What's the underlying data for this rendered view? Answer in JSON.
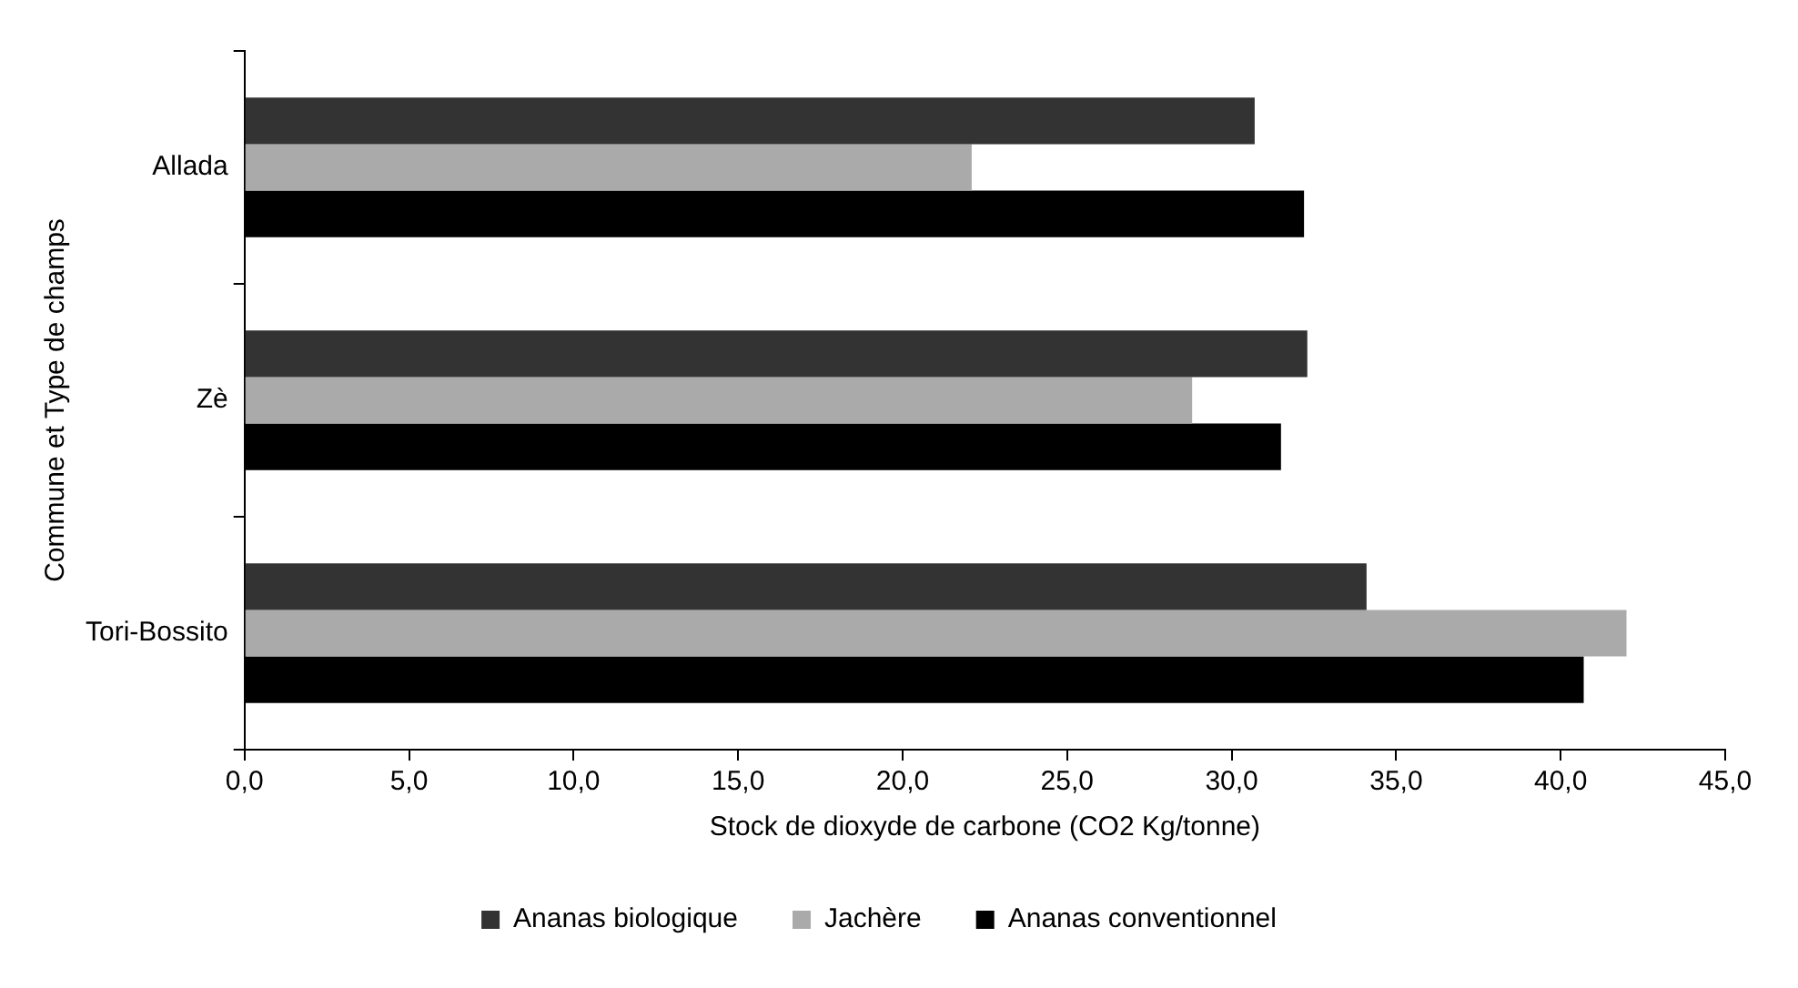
{
  "chart_data": {
    "type": "bar",
    "orientation": "horizontal",
    "xlabel": "Stock de dioxyde de carbone (CO2 Kg/tonne)",
    "ylabel": "Commune et Type de champs",
    "categories": [
      "Allada",
      "Zè",
      "Tori-Bossito"
    ],
    "series": [
      {
        "name": "Ananas biologique",
        "color": "#333333",
        "values": [
          30.7,
          32.3,
          34.1
        ]
      },
      {
        "name": "Jachère",
        "color": "#aaaaaa",
        "values": [
          22.1,
          28.8,
          42.0
        ]
      },
      {
        "name": "Ananas conventionnel",
        "color": "#000000",
        "values": [
          32.2,
          31.5,
          40.7
        ]
      }
    ],
    "xlim": [
      0,
      45
    ],
    "xticks": [
      {
        "value": 0,
        "label": "0,0"
      },
      {
        "value": 5,
        "label": "5,0"
      },
      {
        "value": 10,
        "label": "10,0"
      },
      {
        "value": 15,
        "label": "15,0"
      },
      {
        "value": 20,
        "label": "20,0"
      },
      {
        "value": 25,
        "label": "25,0"
      },
      {
        "value": 30,
        "label": "30,0"
      },
      {
        "value": 35,
        "label": "35,0"
      },
      {
        "value": 40,
        "label": "40,0"
      },
      {
        "value": 45,
        "label": "45,0"
      }
    ],
    "grid": false,
    "legend": "bottom"
  }
}
